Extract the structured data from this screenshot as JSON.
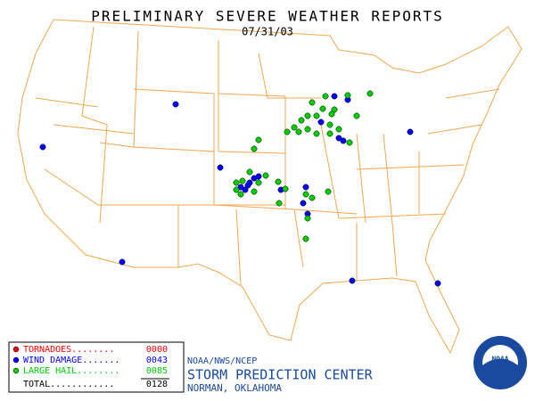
{
  "header": {
    "title": "PRELIMINARY SEVERE WEATHER REPORTS",
    "date": "07/31/03"
  },
  "legend": {
    "items": [
      {
        "label": "TORNADOES........",
        "count": "0000",
        "color": "#ff0000"
      },
      {
        "label": "WIND DAMAGE.......",
        "count": "0043",
        "color": "#0000ff"
      },
      {
        "label": "LARGE HAIL........",
        "count": "0085",
        "color": "#00cc00"
      }
    ],
    "total": {
      "label": "TOTAL............",
      "count": "0128"
    }
  },
  "footer": {
    "agency": "NOAA/NWS/NCEP",
    "center": "STORM PREDICTION CENTER",
    "location": "NORMAN, OKLAHOMA",
    "logo": "NOAA"
  }
}
